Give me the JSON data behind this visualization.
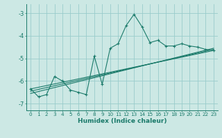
{
  "xlabel": "Humidex (Indice chaleur)",
  "background_color": "#cce8e4",
  "grid_color": "#99cccc",
  "line_color": "#1a7a6a",
  "x_data": [
    0,
    1,
    2,
    3,
    4,
    5,
    6,
    7,
    8,
    9,
    10,
    11,
    12,
    13,
    14,
    15,
    16,
    17,
    18,
    19,
    20,
    21,
    22,
    23
  ],
  "y_data": [
    -6.35,
    -6.7,
    -6.6,
    -5.8,
    -6.0,
    -6.4,
    -6.5,
    -6.6,
    -4.9,
    -6.15,
    -4.55,
    -4.35,
    -3.55,
    -3.05,
    -3.6,
    -4.3,
    -4.2,
    -4.45,
    -4.45,
    -4.35,
    -4.45,
    -4.5,
    -4.6,
    -4.65
  ],
  "trend_lines": [
    {
      "x0": 0,
      "x1": 23,
      "y0": -6.55,
      "y1": -4.55
    },
    {
      "x0": 0,
      "x1": 23,
      "y0": -6.45,
      "y1": -4.6
    },
    {
      "x0": 0,
      "x1": 23,
      "y0": -6.35,
      "y1": -4.65
    }
  ],
  "xlim": [
    -0.5,
    23.5
  ],
  "ylim": [
    -7.3,
    -2.6
  ],
  "yticks": [
    -7,
    -6,
    -5,
    -4,
    -3
  ],
  "xticks": [
    0,
    1,
    2,
    3,
    4,
    5,
    6,
    7,
    8,
    9,
    10,
    11,
    12,
    13,
    14,
    15,
    16,
    17,
    18,
    19,
    20,
    21,
    22,
    23
  ]
}
